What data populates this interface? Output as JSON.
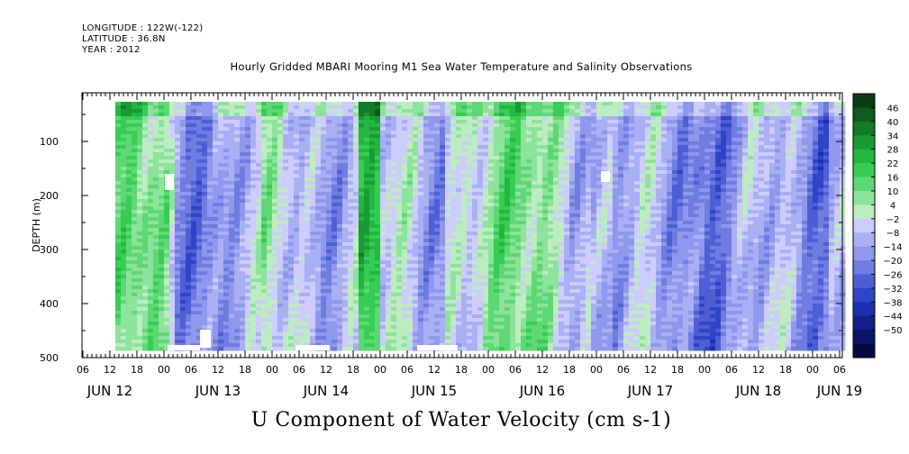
{
  "header": {
    "longitude": "LONGITUDE : 122W(-122)",
    "latitude": "LATITUDE : 36.8N",
    "year": "YEAR : 2012"
  },
  "chart_data": {
    "type": "heatmap",
    "title": "Hourly Gridded MBARI Mooring M1 Sea Water Temperature and Salinity Observations",
    "xlabel": "U Component of Water Velocity (cm s-1)",
    "ylabel": "DEPTH (m)",
    "y_ticks": [
      100,
      200,
      300,
      400,
      500
    ],
    "y_tick_labels": [
      "100",
      "200",
      "300",
      "400",
      "500"
    ],
    "ylim": [
      10,
      500
    ],
    "y_inverted": true,
    "x_hour_labels": [
      "06",
      "12",
      "18",
      "00",
      "06",
      "12",
      "18",
      "00",
      "06",
      "12",
      "18",
      "00",
      "06",
      "12",
      "18",
      "00",
      "06",
      "12",
      "18",
      "00",
      "06",
      "12",
      "18",
      "00",
      "06",
      "12",
      "18",
      "00",
      "06"
    ],
    "x_day_labels": [
      "JUN 12",
      "JUN 13",
      "JUN 14",
      "JUN 15",
      "JUN 16",
      "JUN 17",
      "JUN 18",
      "JUN 19"
    ],
    "colorbar": {
      "levels": [
        46,
        40,
        34,
        28,
        22,
        16,
        10,
        4,
        -2,
        -8,
        -14,
        -20,
        -26,
        -32,
        -38,
        -44,
        -50
      ],
      "colors": [
        "#0a3c14",
        "#0f5a1e",
        "#137a28",
        "#1a9a34",
        "#22b840",
        "#37cc54",
        "#5ed874",
        "#8ce39a",
        "#bdecc0",
        "#ccccff",
        "#aab0f4",
        "#8f98ec",
        "#6f7ce0",
        "#4e5fd6",
        "#2f45c8",
        "#1c2fae",
        "#121f8c",
        "#0a1366",
        "#050a45"
      ]
    }
  }
}
